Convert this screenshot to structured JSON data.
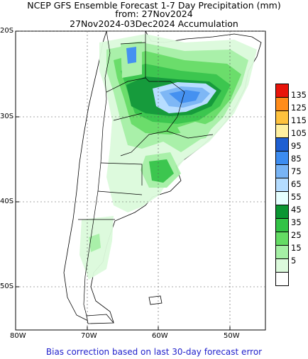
{
  "title": {
    "line1": "NCEP GFS Ensemble Forecast 1-7 Day Precipitation (mm)",
    "line2": "from: 27Nov2024",
    "line3": "27Nov2024-03Dec2024 Accumulation"
  },
  "latitude_labels": [
    "20S",
    "30S",
    "40S",
    "50S"
  ],
  "longitude_labels": [
    "80W",
    "70W",
    "60W",
    "50W"
  ],
  "legend": [
    {
      "label": "135",
      "color": "#e8140a"
    },
    {
      "label": "125",
      "color": "#ff8c1a"
    },
    {
      "label": "115",
      "color": "#ffc23d"
    },
    {
      "label": "105",
      "color": "#fff0a0"
    },
    {
      "label": "95",
      "color": "#1e5fd2"
    },
    {
      "label": "85",
      "color": "#3c8cf0"
    },
    {
      "label": "75",
      "color": "#78b4f5"
    },
    {
      "label": "65",
      "color": "#b4dcff"
    },
    {
      "label": "55",
      "color": "#e6ffff"
    },
    {
      "label": "45",
      "color": "#0a9632"
    },
    {
      "label": "35",
      "color": "#32c346"
    },
    {
      "label": "25",
      "color": "#64dc64"
    },
    {
      "label": "15",
      "color": "#a5f0a5"
    },
    {
      "label": "5",
      "color": "#dcfadc"
    },
    {
      "label": "",
      "color": "#ffffff"
    }
  ],
  "footer": "Bias correction based on last 30-day forecast error"
}
